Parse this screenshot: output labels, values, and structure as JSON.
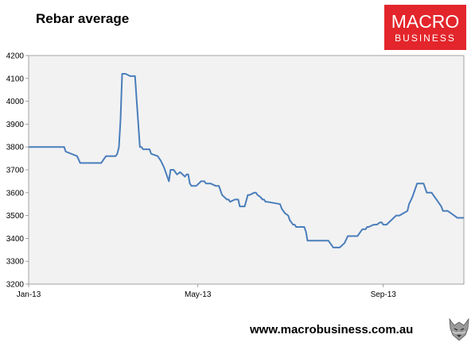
{
  "header": {
    "title": "Rebar average"
  },
  "logo": {
    "line1": "MACRO",
    "line2": "BUSINESS",
    "bg_color": "#e3262b",
    "text_color": "#ffffff"
  },
  "footer": {
    "url": "www.macrobusiness.com.au"
  },
  "icons": {
    "corner": "wolf-logo-icon"
  },
  "chart_data": {
    "type": "line",
    "title": "Rebar average",
    "xlabel": "",
    "ylabel": "",
    "xlim": [
      0,
      270
    ],
    "ylim": [
      3200,
      4200
    ],
    "y_ticks": [
      3200,
      3300,
      3400,
      3500,
      3600,
      3700,
      3800,
      3900,
      4000,
      4100,
      4200
    ],
    "x_ticks": [
      {
        "label": "Jan-13",
        "x": 0
      },
      {
        "label": "May-13",
        "x": 105
      },
      {
        "label": "Sep-13",
        "x": 220
      }
    ],
    "grid": false,
    "legend": "none",
    "series_color": "#4a7ebb",
    "plot_bg": "#f2f2f2",
    "series": [
      {
        "x": [
          0,
          19,
          20,
          21,
          22,
          23,
          30,
          32,
          34,
          45,
          48,
          49,
          50,
          51,
          52,
          53,
          54,
          55,
          56,
          57,
          58,
          60,
          63,
          66,
          69,
          70,
          71,
          72,
          73,
          75,
          76,
          80,
          82,
          84,
          87,
          88,
          89,
          90,
          92,
          94,
          97,
          98,
          99,
          100,
          101,
          102,
          103,
          104,
          107,
          108,
          109,
          110,
          111,
          112,
          113,
          116,
          117,
          118,
          120,
          123,
          124,
          125,
          128,
          130,
          131,
          132,
          134,
          136,
          137,
          140,
          141,
          142,
          144,
          145,
          146,
          147,
          148,
          156,
          157,
          158,
          159,
          161,
          162,
          163,
          164,
          165,
          166,
          167,
          170,
          171,
          172,
          173,
          175,
          176,
          178,
          182,
          183,
          184,
          185,
          186,
          189,
          191,
          193,
          196,
          198,
          199,
          201,
          203,
          204,
          206,
          207,
          208,
          209,
          210,
          211,
          214,
          216,
          218,
          219,
          220,
          222,
          225,
          228,
          230,
          235,
          236,
          238,
          239,
          240,
          241,
          245,
          246,
          247,
          248,
          249,
          250,
          251,
          252,
          253,
          254,
          255,
          256
        ],
        "y": [
          3800,
          3800,
          3800,
          3800,
          3800,
          3780,
          3760,
          3730,
          3730,
          3730,
          3760,
          3760,
          3760,
          3760,
          3760,
          3760,
          3760,
          3770,
          3800,
          3920,
          4120,
          4120,
          4110,
          4110,
          3800,
          3800,
          3790,
          3790,
          3790,
          3790,
          3770,
          3760,
          3740,
          3710,
          3650,
          3700,
          3700,
          3700,
          3680,
          3690,
          3670,
          3680,
          3680,
          3640,
          3630,
          3630,
          3630,
          3630,
          3650,
          3650,
          3650,
          3640,
          3640,
          3640,
          3640,
          3630,
          3630,
          3630,
          3590,
          3570,
          3570,
          3560,
          3570,
          3570,
          3540,
          3540,
          3540,
          3590,
          3590,
          3600,
          3600,
          3590,
          3580,
          3570,
          3570,
          3560,
          3560,
          3550,
          3530,
          3520,
          3510,
          3500,
          3480,
          3470,
          3460,
          3460,
          3450,
          3450,
          3450,
          3450,
          3430,
          3390,
          3390,
          3390,
          3390,
          3390,
          3390,
          3390,
          3390,
          3390,
          3360,
          3360,
          3360,
          3380,
          3410,
          3410,
          3410,
          3410,
          3410,
          3430,
          3440,
          3440,
          3440,
          3450,
          3450,
          3460,
          3460,
          3470,
          3470,
          3460,
          3460,
          3480,
          3500,
          3500,
          3520,
          3550,
          3580,
          3600,
          3620,
          3640,
          3640,
          3620,
          3600,
          3600,
          3600,
          3600,
          3590,
          3580,
          3570,
          3560,
          3550,
          3540
        ],
        "_note": "continuation appended below"
      }
    ]
  }
}
